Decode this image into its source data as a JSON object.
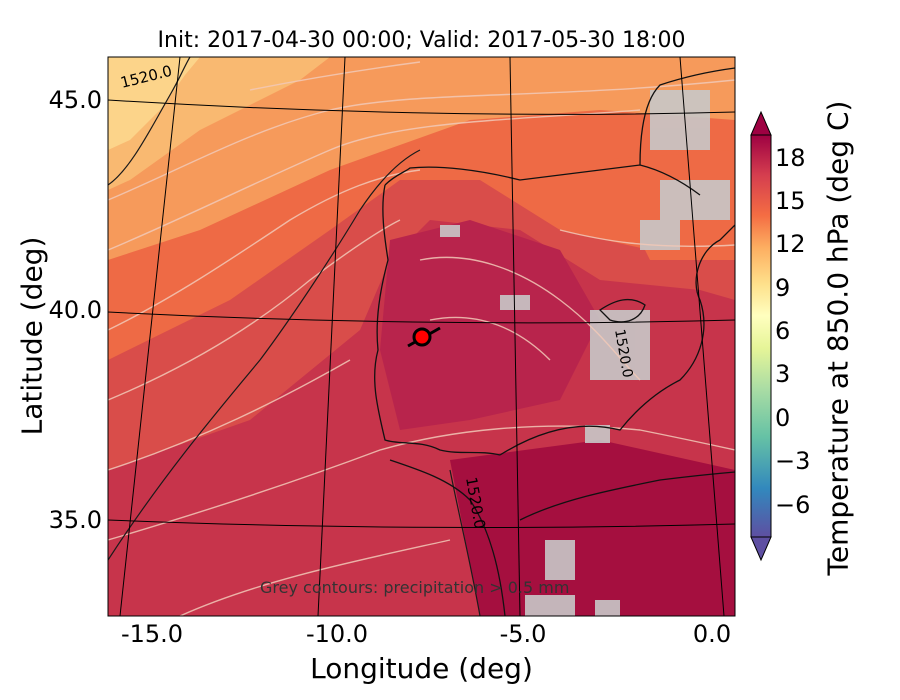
{
  "title": "Init: 2017-04-30 00:00; Valid: 2017-05-30 18:00",
  "map": {
    "lon_range": [
      -16.0,
      0.2
    ],
    "lat_range": [
      32.7,
      46.0
    ],
    "xlabel": "Longitude (deg)",
    "ylabel": "Latitude (deg)",
    "x_ticks": [
      "-15.0",
      "-10.0",
      "-5.0",
      "0.0"
    ],
    "y_ticks": [
      "45.0",
      "40.0",
      "35.0"
    ],
    "contour_labels": [
      "1520.0",
      "1520.0",
      "1520.0"
    ],
    "marker": {
      "lon": -7.6,
      "lat": 39.3,
      "color": "#ff0000"
    },
    "note": "Grey contours: precipitation > 0.5 mm"
  },
  "colorbar": {
    "label": "Temperature at 850.0 hPa (deg C)",
    "ticks": [
      "18",
      "15",
      "12",
      "9",
      "6",
      "3",
      "0",
      "−3",
      "−6"
    ],
    "tick_values": [
      18,
      15,
      12,
      9,
      6,
      3,
      0,
      -3,
      -6
    ],
    "range": [
      -8,
      20
    ],
    "colors": [
      "#5e4fa2",
      "#3288bd",
      "#66c2a5",
      "#abdda4",
      "#e6f598",
      "#ffffbf",
      "#fee08b",
      "#fdae61",
      "#f46d43",
      "#d53e4f",
      "#9e0142"
    ]
  },
  "legend_colors": {
    "hot": "#a50f3f",
    "warm": "#d13b4b",
    "mid": "#ee6a45",
    "mild": "#f7a05e",
    "cool": "#fcd48a",
    "precip_grey": "#c8c8c8"
  }
}
